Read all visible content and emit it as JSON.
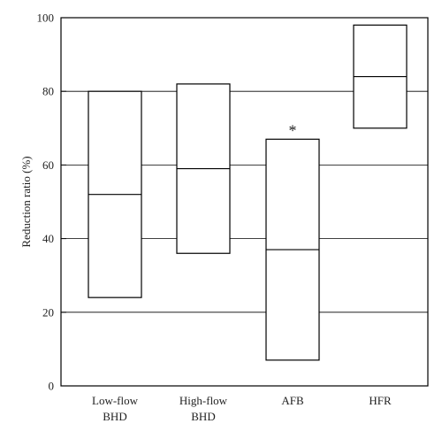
{
  "chart_data": {
    "type": "box",
    "title": "",
    "xlabel": "",
    "ylabel": "Reduction ratio (%)",
    "ylim": [
      0,
      100
    ],
    "yticks": [
      0,
      20,
      40,
      60,
      80,
      100
    ],
    "grid": "horizontal",
    "categories": [
      {
        "lines": [
          "Low-flow",
          "BHD"
        ],
        "low": 24,
        "median": 52,
        "high": 80,
        "annotation": ""
      },
      {
        "lines": [
          "High-flow",
          "BHD"
        ],
        "low": 36,
        "median": 59,
        "high": 82,
        "annotation": ""
      },
      {
        "lines": [
          "AFB"
        ],
        "low": 7,
        "median": 37,
        "high": 67,
        "annotation": "*"
      },
      {
        "lines": [
          "HFR"
        ],
        "low": 70,
        "median": 84,
        "high": 98,
        "annotation": ""
      }
    ]
  }
}
